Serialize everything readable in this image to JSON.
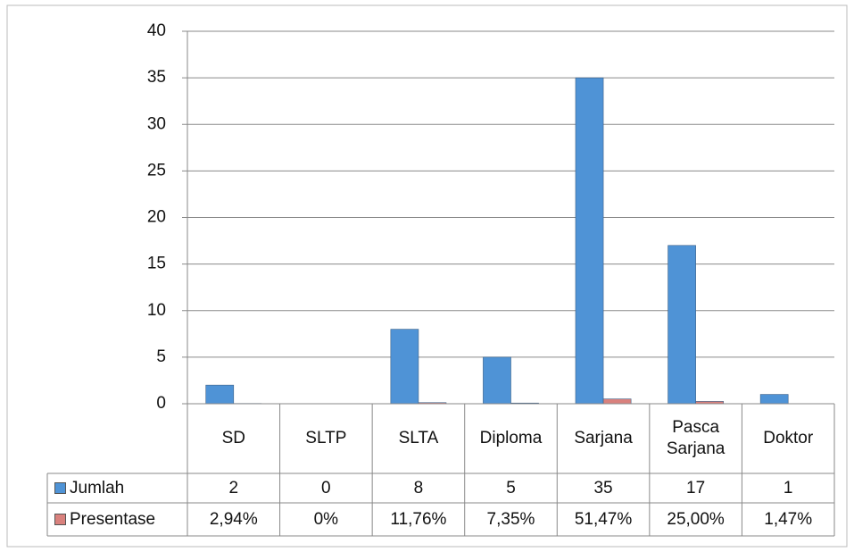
{
  "chart_data": {
    "type": "bar",
    "categories": [
      "SD",
      "SLTP",
      "SLTA",
      "Diploma",
      "Sarjana",
      "Pasca Sarjana",
      "Doktor"
    ],
    "series": [
      {
        "name": "Jumlah",
        "color": "#4f93d6",
        "values": [
          2,
          0,
          8,
          5,
          35,
          17,
          1
        ]
      },
      {
        "name": "Presentase",
        "color": "#d9817d",
        "values": [
          0.0294,
          0,
          0.1176,
          0.0735,
          0.5147,
          0.25,
          0.0147
        ],
        "value_labels": [
          "2,94%",
          "0%",
          "11,76%",
          "7,35%",
          "51,47%",
          "25,00%",
          "1,47%"
        ]
      }
    ],
    "ylim": [
      0,
      40
    ],
    "yticks": [
      0,
      5,
      10,
      15,
      20,
      25,
      30,
      35,
      40
    ],
    "grid": true
  }
}
